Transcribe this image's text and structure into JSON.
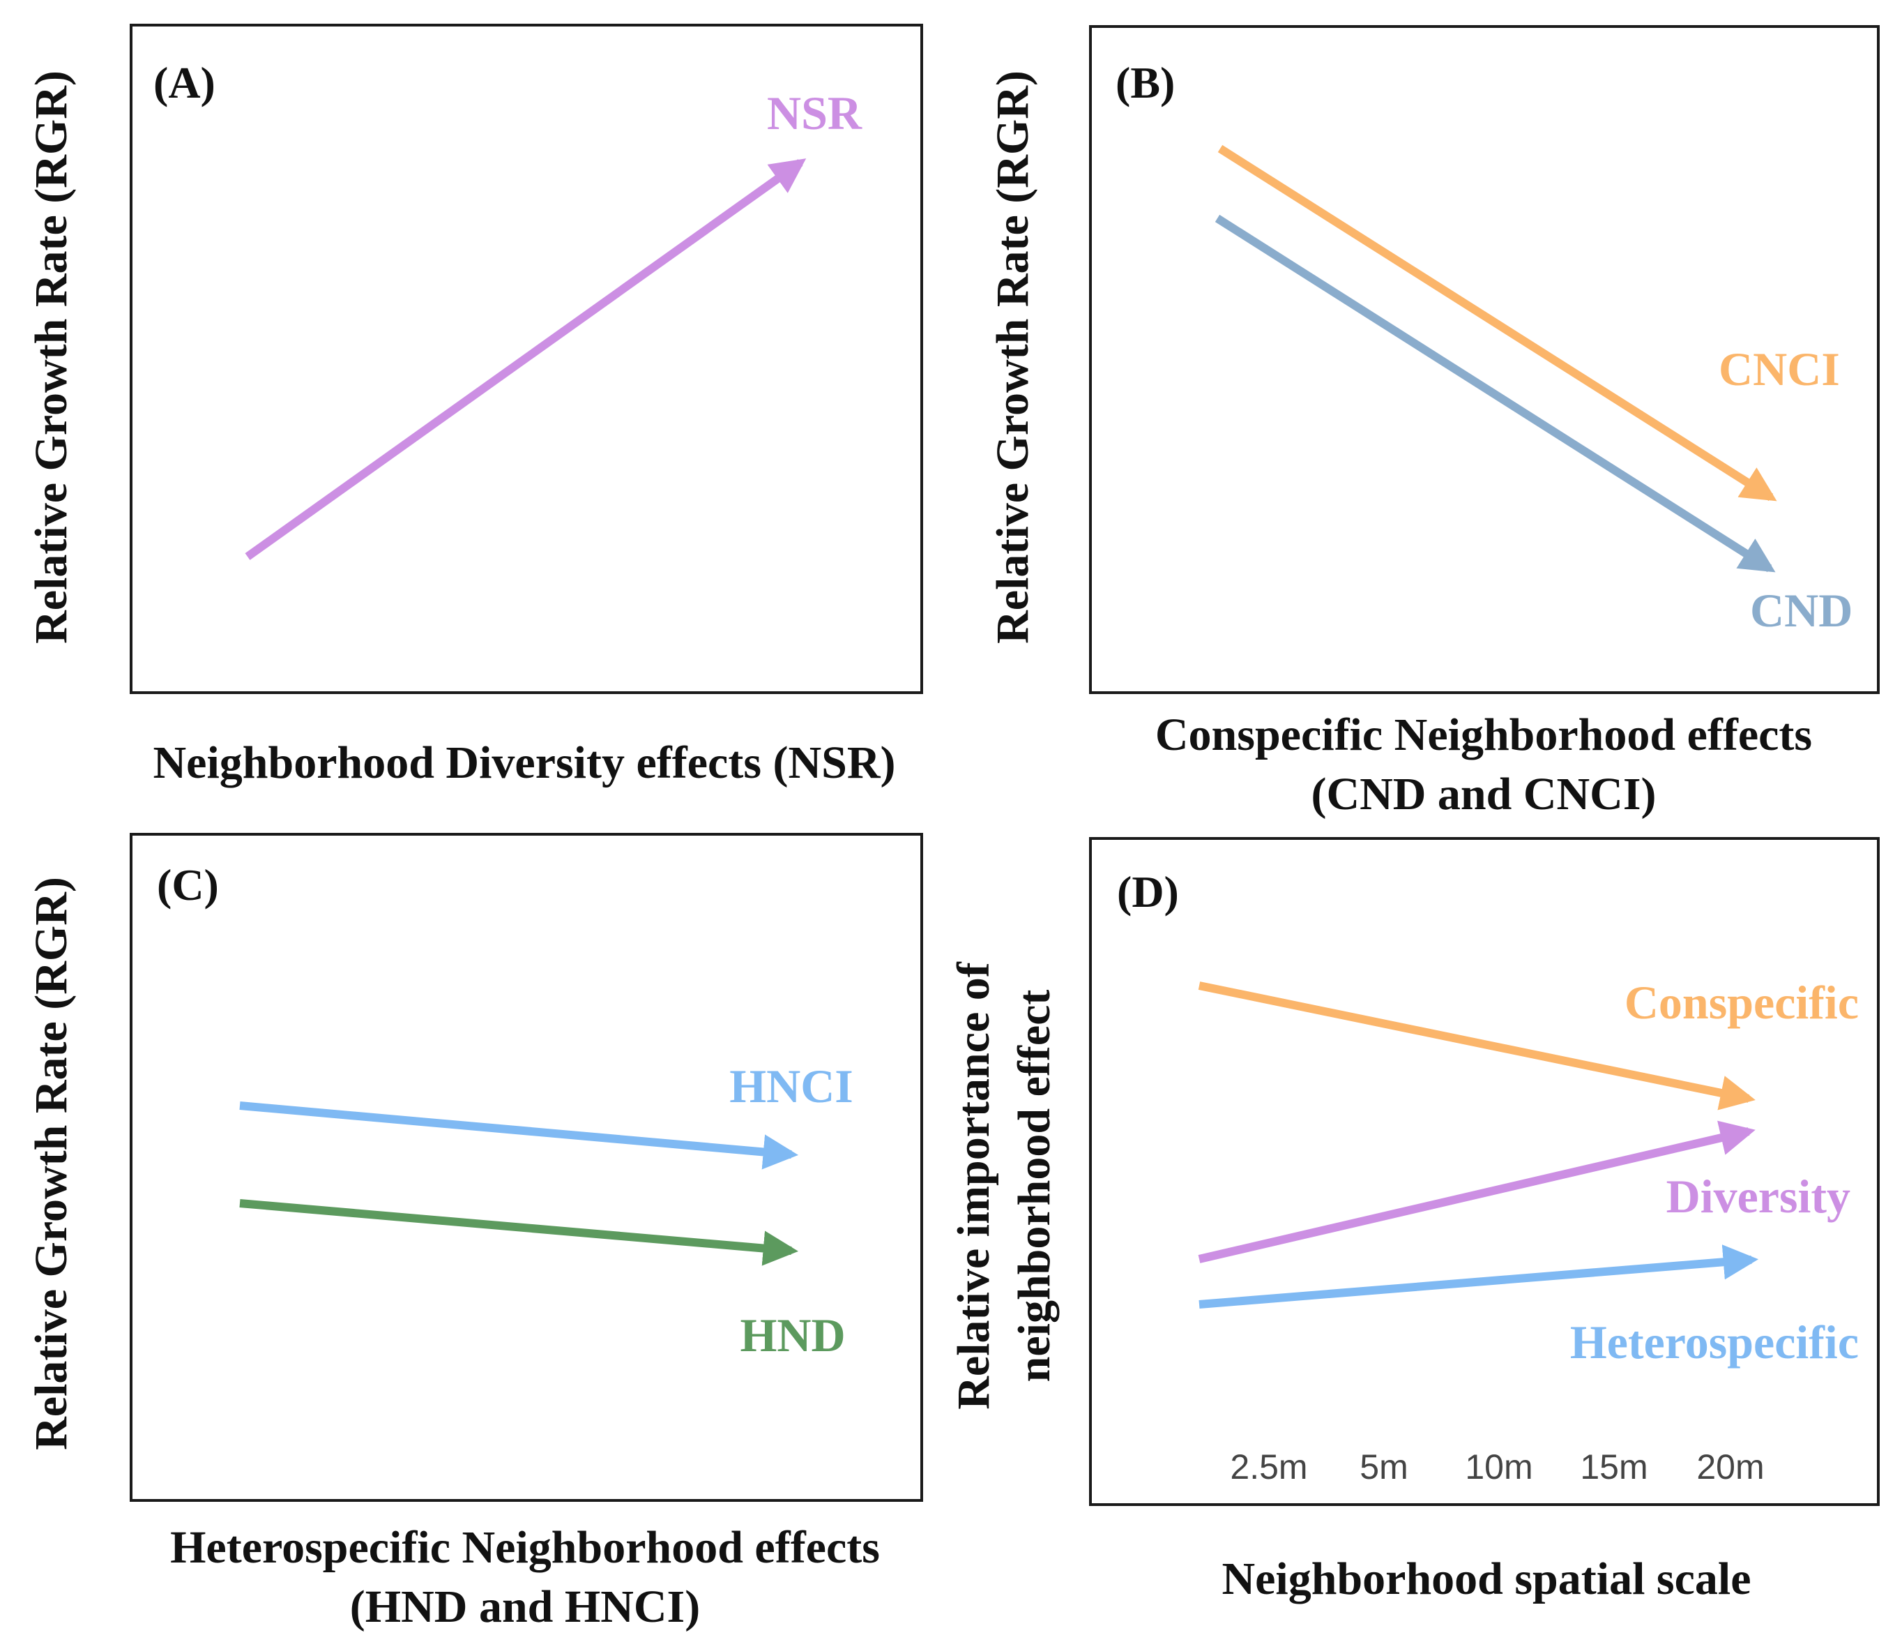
{
  "colors": {
    "nsr": "#cc8fe3",
    "cnci": "#fbb56a",
    "cnd": "#8aaccc",
    "hnci": "#7fb9f3",
    "hnd": "#5c9a5e",
    "conspecific": "#fbb56a",
    "diversity": "#cc8fe3",
    "heterospecific": "#7fb9f3",
    "frame": "#1a1a1a",
    "text": "#111111",
    "tick": "#444444"
  },
  "panelA": {
    "tag": "(A)",
    "ylabel": "Relative Growth Rate (RGR)",
    "xlabel": "Neighborhood Diversity effects (NSR)",
    "arrows": [
      {
        "label": "NSR",
        "color_key": "nsr",
        "trend": "increasing"
      }
    ]
  },
  "panelB": {
    "tag": "(B)",
    "ylabel": "Relative Growth Rate (RGR)",
    "xlabel_line1": "Conspecific Neighborhood effects",
    "xlabel_line2": "(CND and CNCI)",
    "arrows": [
      {
        "label": "CNCI",
        "color_key": "cnci",
        "trend": "decreasing"
      },
      {
        "label": "CND",
        "color_key": "cnd",
        "trend": "decreasing"
      }
    ]
  },
  "panelC": {
    "tag": "(C)",
    "ylabel": "Relative Growth Rate (RGR)",
    "xlabel_line1": "Heterospecific Neighborhood effects",
    "xlabel_line2": "(HND and HNCI)",
    "arrows": [
      {
        "label": "HNCI",
        "color_key": "hnci",
        "trend": "slightly decreasing"
      },
      {
        "label": "HND",
        "color_key": "hnd",
        "trend": "slightly decreasing"
      }
    ]
  },
  "panelD": {
    "tag": "(D)",
    "ylabel_line1": "Relative importance of",
    "ylabel_line2": "neighborhood  effect",
    "xlabel": "Neighborhood spatial scale",
    "ticks": [
      "2.5m",
      "5m",
      "10m",
      "15m",
      "20m"
    ],
    "arrows": [
      {
        "label": "Conspecific",
        "color_key": "conspecific",
        "trend": "decreasing"
      },
      {
        "label": "Diversity",
        "color_key": "diversity",
        "trend": "increasing"
      },
      {
        "label": "Heterospecific",
        "color_key": "heterospecific",
        "trend": "slightly increasing"
      }
    ]
  }
}
